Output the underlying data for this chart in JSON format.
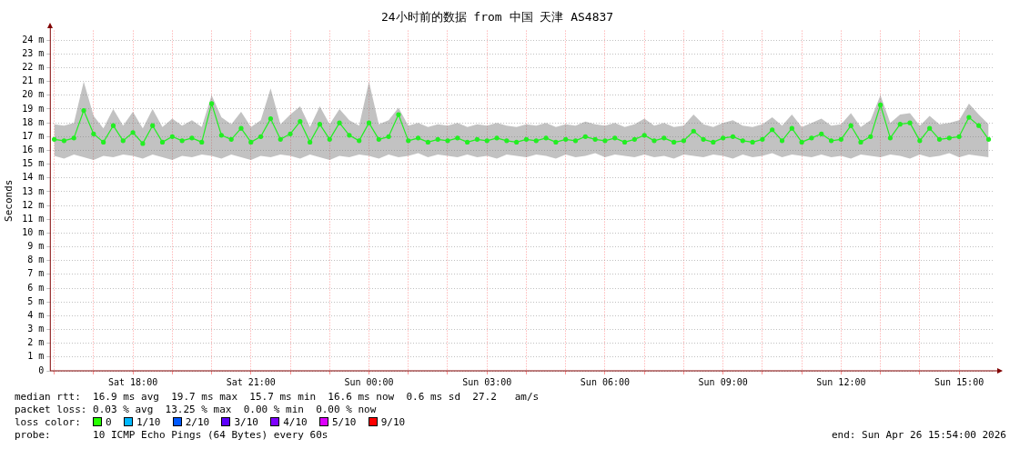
{
  "chart_data": {
    "type": "line",
    "title": "24小时前的数据 from 中国 天津 AS4837",
    "ylabel": "Seconds",
    "x": [
      "2026-04-25T16:00",
      "2026-04-25T16:15",
      "2026-04-25T16:30",
      "2026-04-25T16:45",
      "2026-04-25T17:00",
      "2026-04-25T17:15",
      "2026-04-25T17:30",
      "2026-04-25T17:45",
      "2026-04-25T18:00",
      "2026-04-25T18:15",
      "2026-04-25T18:30",
      "2026-04-25T18:45",
      "2026-04-25T19:00",
      "2026-04-25T19:15",
      "2026-04-25T19:30",
      "2026-04-25T19:45",
      "2026-04-25T20:00",
      "2026-04-25T20:15",
      "2026-04-25T20:30",
      "2026-04-25T20:45",
      "2026-04-25T21:00",
      "2026-04-25T21:15",
      "2026-04-25T21:30",
      "2026-04-25T21:45",
      "2026-04-25T22:00",
      "2026-04-25T22:15",
      "2026-04-25T22:30",
      "2026-04-25T22:45",
      "2026-04-25T23:00",
      "2026-04-25T23:15",
      "2026-04-25T23:30",
      "2026-04-25T23:45",
      "2026-04-26T00:00",
      "2026-04-26T00:15",
      "2026-04-26T00:30",
      "2026-04-26T00:45",
      "2026-04-26T01:00",
      "2026-04-26T01:15",
      "2026-04-26T01:30",
      "2026-04-26T01:45",
      "2026-04-26T02:00",
      "2026-04-26T02:15",
      "2026-04-26T02:30",
      "2026-04-26T02:45",
      "2026-04-26T03:00",
      "2026-04-26T03:15",
      "2026-04-26T03:30",
      "2026-04-26T03:45",
      "2026-04-26T04:00",
      "2026-04-26T04:15",
      "2026-04-26T04:30",
      "2026-04-26T04:45",
      "2026-04-26T05:00",
      "2026-04-26T05:15",
      "2026-04-26T05:30",
      "2026-04-26T05:45",
      "2026-04-26T06:00",
      "2026-04-26T06:15",
      "2026-04-26T06:30",
      "2026-04-26T06:45",
      "2026-04-26T07:00",
      "2026-04-26T07:15",
      "2026-04-26T07:30",
      "2026-04-26T07:45",
      "2026-04-26T08:00",
      "2026-04-26T08:15",
      "2026-04-26T08:30",
      "2026-04-26T08:45",
      "2026-04-26T09:00",
      "2026-04-26T09:15",
      "2026-04-26T09:30",
      "2026-04-26T09:45",
      "2026-04-26T10:00",
      "2026-04-26T10:15",
      "2026-04-26T10:30",
      "2026-04-26T10:45",
      "2026-04-26T11:00",
      "2026-04-26T11:15",
      "2026-04-26T11:30",
      "2026-04-26T11:45",
      "2026-04-26T12:00",
      "2026-04-26T12:15",
      "2026-04-26T12:30",
      "2026-04-26T12:45",
      "2026-04-26T13:00",
      "2026-04-26T13:15",
      "2026-04-26T13:30",
      "2026-04-26T13:45",
      "2026-04-26T14:00",
      "2026-04-26T14:15",
      "2026-04-26T14:30",
      "2026-04-26T14:45",
      "2026-04-26T15:00",
      "2026-04-26T15:15",
      "2026-04-26T15:30",
      "2026-04-26T15:45"
    ],
    "series": [
      {
        "color": "#22ee22",
        "values": [
          16.8,
          16.7,
          16.9,
          18.9,
          17.2,
          16.6,
          17.8,
          16.7,
          17.3,
          16.5,
          17.8,
          16.6,
          17.0,
          16.7,
          16.9,
          16.6,
          19.4,
          17.1,
          16.8,
          17.6,
          16.6,
          17.0,
          18.3,
          16.8,
          17.2,
          18.1,
          16.6,
          17.9,
          16.8,
          18.0,
          17.1,
          16.7,
          18.0,
          16.8,
          17.0,
          18.6,
          16.7,
          16.9,
          16.6,
          16.8,
          16.7,
          16.9,
          16.6,
          16.8,
          16.7,
          16.9,
          16.7,
          16.6,
          16.8,
          16.7,
          16.9,
          16.6,
          16.8,
          16.7,
          17.0,
          16.8,
          16.7,
          16.9,
          16.6,
          16.8,
          17.1,
          16.7,
          16.9,
          16.6,
          16.7,
          17.4,
          16.8,
          16.6,
          16.9,
          17.0,
          16.7,
          16.6,
          16.8,
          17.5,
          16.7,
          17.6,
          16.6,
          16.9,
          17.2,
          16.7,
          16.8,
          17.8,
          16.6,
          17.0,
          19.3,
          16.9,
          17.9,
          18.0,
          16.7,
          17.6,
          16.8,
          16.9,
          17.0,
          18.4,
          17.8,
          16.8
        ],
        "upper": [
          17.9,
          17.8,
          18.0,
          21.0,
          18.5,
          17.6,
          19.0,
          17.8,
          18.8,
          17.6,
          19.0,
          17.7,
          18.3,
          17.8,
          18.2,
          17.7,
          20.0,
          18.4,
          17.9,
          18.8,
          17.7,
          18.2,
          20.5,
          17.9,
          18.6,
          19.2,
          17.7,
          19.2,
          17.9,
          19.0,
          18.2,
          17.8,
          21.0,
          17.9,
          18.2,
          19.1,
          17.8,
          18.0,
          17.7,
          17.9,
          17.8,
          18.0,
          17.7,
          17.9,
          17.8,
          18.0,
          17.8,
          17.7,
          17.9,
          17.8,
          18.0,
          17.7,
          17.9,
          17.8,
          18.1,
          17.9,
          17.8,
          18.0,
          17.7,
          17.9,
          18.3,
          17.8,
          18.0,
          17.7,
          17.8,
          18.6,
          17.9,
          17.7,
          18.0,
          18.2,
          17.8,
          17.7,
          17.9,
          18.4,
          17.8,
          18.6,
          17.7,
          18.0,
          18.3,
          17.8,
          17.9,
          18.7,
          17.7,
          18.2,
          20.0,
          18.0,
          18.6,
          18.7,
          17.8,
          18.5,
          17.9,
          18.0,
          18.2,
          19.4,
          18.6,
          17.9
        ],
        "lower": [
          15.6,
          15.4,
          15.7,
          15.5,
          15.3,
          15.6,
          15.5,
          15.7,
          15.6,
          15.4,
          15.7,
          15.5,
          15.3,
          15.6,
          15.5,
          15.7,
          15.6,
          15.4,
          15.7,
          15.5,
          15.3,
          15.6,
          15.5,
          15.7,
          15.6,
          15.4,
          15.7,
          15.5,
          15.3,
          15.6,
          15.5,
          15.7,
          15.6,
          15.4,
          15.7,
          15.5,
          15.6,
          15.8,
          15.5,
          15.7,
          15.6,
          15.5,
          15.7,
          15.5,
          15.6,
          15.4,
          15.7,
          15.6,
          15.5,
          15.7,
          15.6,
          15.4,
          15.7,
          15.5,
          15.6,
          15.8,
          15.5,
          15.7,
          15.6,
          15.5,
          15.7,
          15.5,
          15.6,
          15.4,
          15.7,
          15.6,
          15.5,
          15.7,
          15.6,
          15.4,
          15.7,
          15.5,
          15.6,
          15.8,
          15.5,
          15.7,
          15.6,
          15.5,
          15.7,
          15.5,
          15.6,
          15.4,
          15.7,
          15.6,
          15.5,
          15.7,
          15.6,
          15.4,
          15.7,
          15.5,
          15.6,
          15.8,
          15.5,
          15.7,
          15.6,
          15.5
        ]
      }
    ],
    "xlim": [
      "2026-04-25T15:54",
      "2026-04-26T15:54"
    ],
    "xticks": [
      {
        "value": "2026-04-25T16:00",
        "label": null
      },
      {
        "value": "2026-04-25T17:00",
        "label": null
      },
      {
        "value": "2026-04-25T18:00",
        "label": "Sat 18:00"
      },
      {
        "value": "2026-04-25T19:00",
        "label": null
      },
      {
        "value": "2026-04-25T20:00",
        "label": null
      },
      {
        "value": "2026-04-25T21:00",
        "label": "Sat 21:00"
      },
      {
        "value": "2026-04-25T22:00",
        "label": null
      },
      {
        "value": "2026-04-25T23:00",
        "label": null
      },
      {
        "value": "2026-04-26T00:00",
        "label": "Sun 00:00"
      },
      {
        "value": "2026-04-26T01:00",
        "label": null
      },
      {
        "value": "2026-04-26T02:00",
        "label": null
      },
      {
        "value": "2026-04-26T03:00",
        "label": "Sun 03:00"
      },
      {
        "value": "2026-04-26T04:00",
        "label": null
      },
      {
        "value": "2026-04-26T05:00",
        "label": null
      },
      {
        "value": "2026-04-26T06:00",
        "label": "Sun 06:00"
      },
      {
        "value": "2026-04-26T07:00",
        "label": null
      },
      {
        "value": "2026-04-26T08:00",
        "label": null
      },
      {
        "value": "2026-04-26T09:00",
        "label": "Sun 09:00"
      },
      {
        "value": "2026-04-26T10:00",
        "label": null
      },
      {
        "value": "2026-04-26T11:00",
        "label": null
      },
      {
        "value": "2026-04-26T12:00",
        "label": "Sun 12:00"
      },
      {
        "value": "2026-04-26T13:00",
        "label": null
      },
      {
        "value": "2026-04-26T14:00",
        "label": null
      },
      {
        "value": "2026-04-26T15:00",
        "label": "Sun 15:00"
      }
    ],
    "ylim": [
      0,
      24.7
    ],
    "yticks": [
      {
        "value": 0,
        "label": "0"
      },
      {
        "value": 1,
        "label": "1 m"
      },
      {
        "value": 2,
        "label": "2 m"
      },
      {
        "value": 3,
        "label": "3 m"
      },
      {
        "value": 4,
        "label": "4 m"
      },
      {
        "value": 5,
        "label": "5 m"
      },
      {
        "value": 6,
        "label": "6 m"
      },
      {
        "value": 7,
        "label": "7 m"
      },
      {
        "value": 8,
        "label": "8 m"
      },
      {
        "value": 9,
        "label": "9 m"
      },
      {
        "value": 10,
        "label": "10 m"
      },
      {
        "value": 11,
        "label": "11 m"
      },
      {
        "value": 12,
        "label": "12 m"
      },
      {
        "value": 13,
        "label": "13 m"
      },
      {
        "value": 14,
        "label": "14 m"
      },
      {
        "value": 15,
        "label": "15 m"
      },
      {
        "value": 16,
        "label": "16 m"
      },
      {
        "value": 17,
        "label": "17 m"
      },
      {
        "value": 18,
        "label": "18 m"
      },
      {
        "value": 19,
        "label": "19 m"
      },
      {
        "value": 20,
        "label": "20 m"
      },
      {
        "value": 21,
        "label": "21 m"
      },
      {
        "value": 22,
        "label": "22 m"
      },
      {
        "value": 23,
        "label": "23 m"
      },
      {
        "value": 24,
        "label": "24 m"
      }
    ],
    "grid": true,
    "marker": "circle",
    "line_style": "solid",
    "legend": false,
    "annotations": [
      "median rtt:  16.9 ms avg  19.7 ms max  15.7 ms min  16.6 ms now  0.6 ms sd  27.2   am/s",
      "packet loss: 0.03 % avg  13.25 % max  0.00 % min  0.00 % now",
      "loss color:  0  1/10  2/10  3/10  4/10  5/10  9/10",
      "probe:       10 ICMP Echo Pings (64 Bytes) every 60s",
      "end: Sun Apr 26 15:54:00 2026"
    ]
  }
}
